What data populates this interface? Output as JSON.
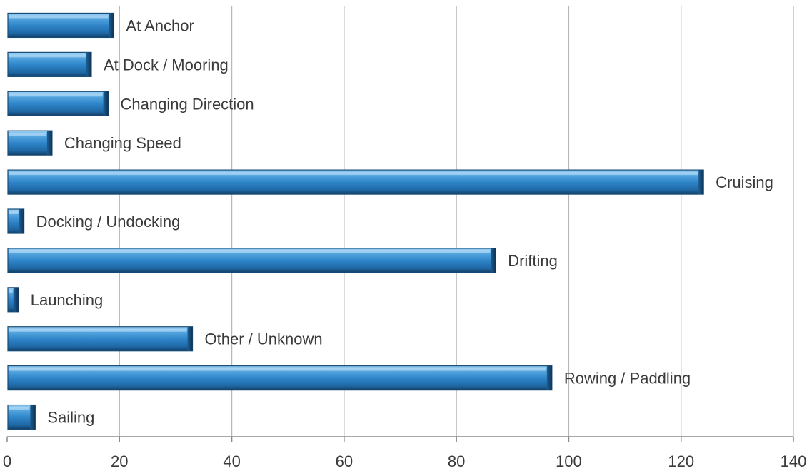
{
  "chart_data": {
    "type": "bar",
    "orientation": "horizontal",
    "categories": [
      "At Anchor",
      "At Dock / Mooring",
      "Changing Direction",
      "Changing Speed",
      "Cruising",
      "Docking / Undocking",
      "Drifting",
      "Launching",
      "Other / Unknown",
      "Rowing / Paddling",
      "Sailing"
    ],
    "values": [
      19,
      15,
      18,
      8,
      124,
      3,
      87,
      2,
      33,
      97,
      5
    ],
    "xlim": [
      0,
      140
    ],
    "xticks": [
      "0",
      "20",
      "40",
      "60",
      "80",
      "100",
      "120",
      "140"
    ],
    "grid": "vertical",
    "legend": "none",
    "colors": {
      "bar": "#2f86c9",
      "bar_light": "#7cc0ee",
      "bar_dark": "#1b4f7a"
    }
  }
}
